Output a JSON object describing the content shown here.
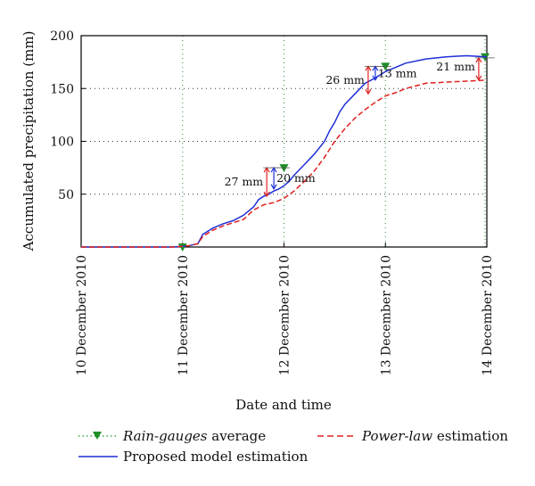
{
  "chart_data": {
    "type": "line",
    "xlabel": "Date and time",
    "ylabel": "Accumulated precipitation (mm)",
    "xlim": [
      "10 December 2010",
      "14 December 2010"
    ],
    "ylim": [
      0,
      200
    ],
    "yticks": [
      50,
      100,
      150,
      200
    ],
    "xticks": [
      "10 December 2010",
      "11 December 2010",
      "12 December 2010",
      "13 December 2010",
      "14 December 2010"
    ],
    "grid": true,
    "legend_position": "bottom",
    "series": [
      {
        "name": "Rain-gauges average",
        "style": "markers",
        "color": "#1e8f2a",
        "x_days": [
          1.0,
          2.0,
          3.0,
          4.0
        ],
        "values": [
          0,
          75,
          171,
          180
        ]
      },
      {
        "name": "Proposed model estimation",
        "style": "solid",
        "color": "#1f2fd6",
        "x_days": [
          0,
          0.9,
          1.05,
          1.15,
          1.2,
          1.3,
          1.4,
          1.5,
          1.6,
          1.7,
          1.75,
          1.8,
          1.85,
          1.9,
          1.95,
          2.0,
          2.05,
          2.1,
          2.2,
          2.3,
          2.4,
          2.45,
          2.5,
          2.55,
          2.6,
          2.7,
          2.8,
          2.9,
          3.0,
          3.1,
          3.2,
          3.4,
          3.6,
          3.8,
          4.0
        ],
        "values": [
          0,
          0,
          1,
          3,
          12,
          18,
          22,
          25,
          30,
          38,
          45,
          48,
          50,
          53,
          55,
          58,
          62,
          68,
          78,
          88,
          100,
          110,
          118,
          128,
          135,
          145,
          155,
          160,
          166,
          170,
          174,
          178,
          180,
          181,
          180
        ]
      },
      {
        "name": "Power-law estimation",
        "style": "dashed",
        "color": "#e02020",
        "x_days": [
          0,
          0.9,
          1.05,
          1.15,
          1.2,
          1.3,
          1.4,
          1.5,
          1.6,
          1.7,
          1.8,
          1.9,
          2.0,
          2.1,
          2.2,
          2.3,
          2.4,
          2.5,
          2.6,
          2.7,
          2.8,
          2.9,
          3.0,
          3.1,
          3.2,
          3.4,
          3.6,
          3.8,
          4.0
        ],
        "values": [
          0,
          0,
          1,
          3,
          10,
          16,
          20,
          23,
          26,
          35,
          40,
          42,
          46,
          53,
          62,
          72,
          85,
          100,
          112,
          122,
          130,
          137,
          143,
          146,
          150,
          155,
          156,
          157,
          158
        ]
      }
    ],
    "annotations": [
      {
        "text": "27 mm",
        "x_day": 1.83,
        "from": 48,
        "to": 75
      },
      {
        "text": "20 mm",
        "x_day": 1.9,
        "from": 55,
        "to": 75
      },
      {
        "text": "26 mm",
        "x_day": 2.83,
        "from": 145,
        "to": 171
      },
      {
        "text": "13 mm",
        "x_day": 2.9,
        "from": 158,
        "to": 171
      },
      {
        "text": "21 mm",
        "x_day": 3.92,
        "from": 158,
        "to": 179
      }
    ],
    "legend": {
      "rain_label_italic": "Rain-gauges",
      "rain_label_rest": " average",
      "model_label": "Proposed model estimation",
      "power_label_italic": "Power-law",
      "power_label_rest": " estimation"
    }
  }
}
